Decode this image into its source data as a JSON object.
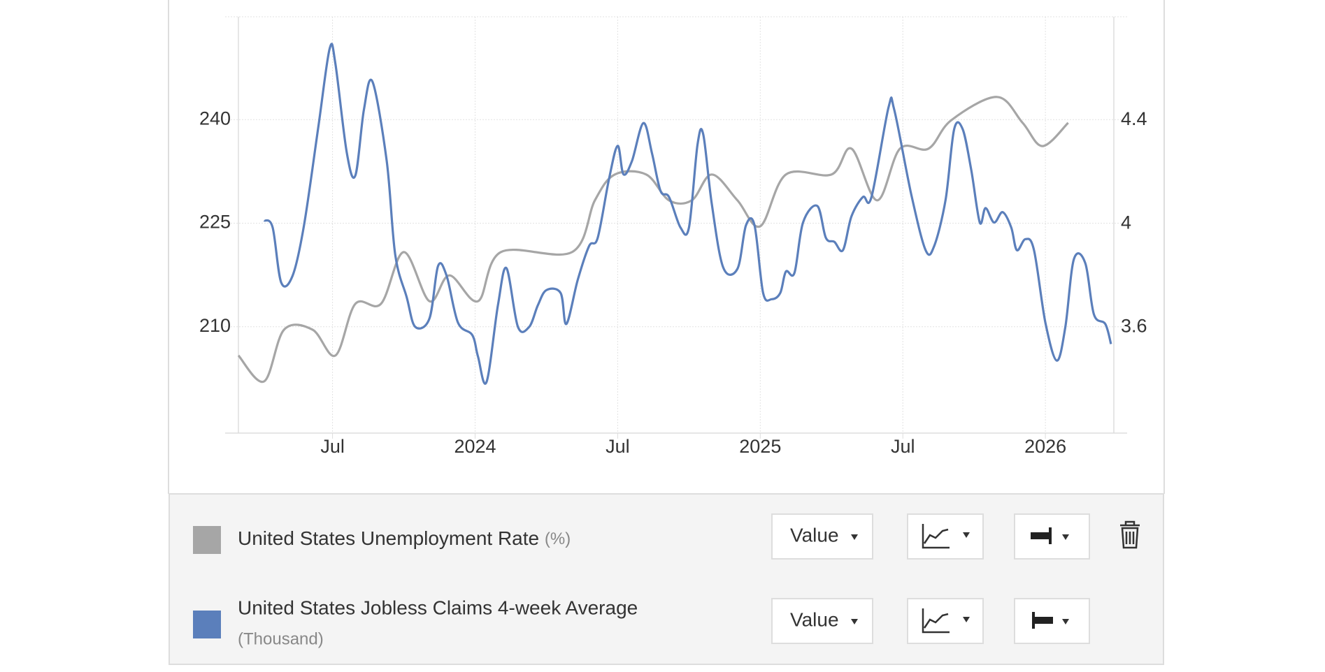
{
  "chart_data": {
    "type": "line",
    "xlim": [
      2023.17,
      2026.24
    ],
    "xticks": [
      {
        "value": 2023.5,
        "label": "Jul"
      },
      2024,
      {
        "value": 2024.5,
        "label": "Jul"
      },
      2025,
      {
        "value": 2025.5,
        "label": "Jul"
      },
      2026
    ],
    "ylim": [
      194.6,
      254.9
    ],
    "yticks": [
      210,
      225,
      240
    ],
    "y2lim": [
      3.19,
      4.8
    ],
    "y2ticks": [
      3.6,
      4,
      4.4
    ],
    "grid": true,
    "series": [
      {
        "name": "United States Unemployment Rate",
        "unit": "(%)",
        "color": "#a6a6a6",
        "axis": "y2",
        "x": [
          2023.17,
          2023.26,
          2023.33,
          2023.43,
          2023.51,
          2023.58,
          2023.67,
          2023.75,
          2023.84,
          2023.91,
          2024.01,
          2024.09,
          2024.34,
          2024.42,
          2024.49,
          2024.6,
          2024.68,
          2024.76,
          2024.83,
          2024.92,
          2025.0,
          2025.09,
          2025.25,
          2025.32,
          2025.41,
          2025.49,
          2025.59,
          2025.67,
          2025.83,
          2025.92,
          2025.99,
          2026.08
        ],
        "values": [
          3.49,
          3.39,
          3.59,
          3.59,
          3.49,
          3.69,
          3.69,
          3.89,
          3.7,
          3.8,
          3.7,
          3.89,
          3.89,
          4.09,
          4.19,
          4.19,
          4.09,
          4.09,
          4.19,
          4.09,
          3.99,
          4.19,
          4.19,
          4.29,
          4.09,
          4.29,
          4.29,
          4.4,
          4.49,
          4.39,
          4.3,
          4.39
        ]
      },
      {
        "name": "United States Jobless Claims 4-week Average",
        "unit": "(Thousand)",
        "color": "#5b7fbb",
        "axis": "y",
        "x": [
          2023.26,
          2023.29,
          2023.32,
          2023.36,
          2023.4,
          2023.45,
          2023.49,
          2023.51,
          2023.55,
          2023.58,
          2023.61,
          2023.64,
          2023.69,
          2023.72,
          2023.76,
          2023.79,
          2023.84,
          2023.87,
          2023.9,
          2023.94,
          2023.99,
          2024.01,
          2024.04,
          2024.08,
          2024.11,
          2024.15,
          2024.19,
          2024.22,
          2024.25,
          2024.3,
          2024.32,
          2024.36,
          2024.4,
          2024.43,
          2024.47,
          2024.5,
          2024.52,
          2024.55,
          2024.59,
          2024.62,
          2024.65,
          2024.68,
          2024.72,
          2024.75,
          2024.78,
          2024.8,
          2024.83,
          2024.87,
          2024.92,
          2024.95,
          2024.98,
          2025.01,
          2025.04,
          2025.07,
          2025.09,
          2025.12,
          2025.15,
          2025.2,
          2025.23,
          2025.26,
          2025.29,
          2025.32,
          2025.36,
          2025.39,
          2025.45,
          2025.47,
          2025.53,
          2025.58,
          2025.61,
          2025.65,
          2025.68,
          2025.71,
          2025.74,
          2025.77,
          2025.79,
          2025.82,
          2025.85,
          2025.88,
          2025.9,
          2025.93,
          2025.96,
          2026.0,
          2026.04,
          2026.07,
          2026.1,
          2026.14,
          2026.17,
          2026.21,
          2026.23
        ],
        "values": [
          225.4,
          224.4,
          216.4,
          217.4,
          224.7,
          238.9,
          250.3,
          248.1,
          235.2,
          231.9,
          241.4,
          245.5,
          234.0,
          220.4,
          214.3,
          210.0,
          211.2,
          218.8,
          217.4,
          210.6,
          208.8,
          205.7,
          202.0,
          213.1,
          218.5,
          210.0,
          210.0,
          213.1,
          215.3,
          214.9,
          210.4,
          216.8,
          221.7,
          222.9,
          231.5,
          236.2,
          232.1,
          234.0,
          239.5,
          235.2,
          229.7,
          228.8,
          224.4,
          224.4,
          236.4,
          237.9,
          227.8,
          218.6,
          218.4,
          224.7,
          224.7,
          214.9,
          214.0,
          214.9,
          218.0,
          217.8,
          225.1,
          227.5,
          222.9,
          222.3,
          221.1,
          226.0,
          228.8,
          228.8,
          241.8,
          241.4,
          229.1,
          221.1,
          221.7,
          228.4,
          238.6,
          238.6,
          232.7,
          225.1,
          227.2,
          225.1,
          226.6,
          224.4,
          221.1,
          222.7,
          221.1,
          210.6,
          205.1,
          210.0,
          219.8,
          219.2,
          211.8,
          210.4,
          207.5
        ]
      }
    ]
  },
  "legend_controls": [
    {
      "mode": "Value"
    },
    {
      "mode": "Value"
    }
  ]
}
